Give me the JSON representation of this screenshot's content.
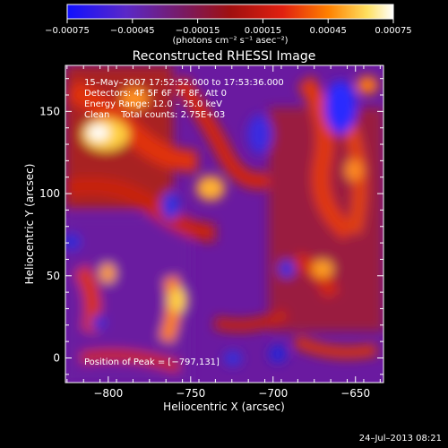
{
  "chart_data": {
    "type": "heatmap",
    "title": "Reconstructed RHESSI Image",
    "xlabel": "Heliocentric X (arcsec)",
    "ylabel": "Heliocentric Y (arcsec)",
    "xlim": [
      -826,
      -633
    ],
    "ylim": [
      -15,
      178
    ],
    "x_ticks": [
      -800,
      -750,
      -700,
      -650
    ],
    "y_ticks": [
      0,
      50,
      100,
      150
    ],
    "colorbar": {
      "range": [
        -0.00075,
        0.00075
      ],
      "ticks": [
        "-0.00075",
        "-0.00045",
        "-0.00015",
        "0.00015",
        "0.00045",
        "0.00075"
      ],
      "unit_label": "(photons cm⁻² s⁻¹ asec⁻²)",
      "colors": [
        "#1010ff",
        "#6a1aa0",
        "#8a1830",
        "#d01010",
        "#ff7000",
        "#ffd840",
        "#ffffff"
      ]
    },
    "annotations": {
      "time": "15–May–2007 17:52:52.000 to 17:53:36.000",
      "detectors": "Detectors: 4F 5F 6F 7F 8F, Att 0",
      "energy": "Energy Range: 12.0 – 25.0 keV",
      "clean": "Clean    Total counts: 2.75E+03",
      "peak": "Position of Peak = [−797,131]"
    },
    "peak_position": [
      -797,
      131
    ],
    "total_counts": 2750
  },
  "footer": {
    "date": "24–Jul–2013 08:21"
  }
}
